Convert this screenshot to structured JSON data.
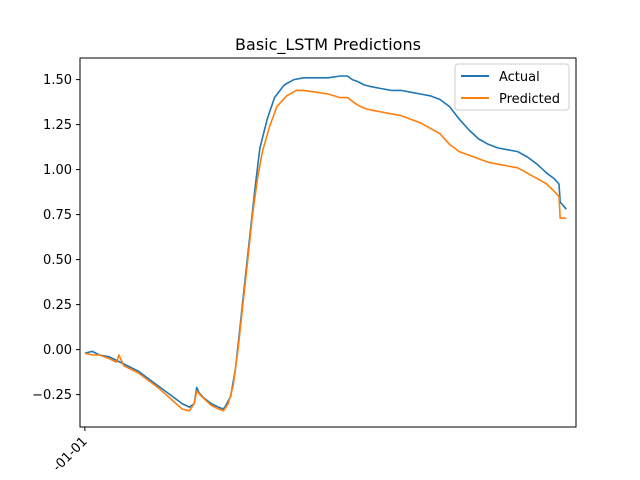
{
  "chart_data": {
    "type": "line",
    "title": "Basic_LSTM Predictions",
    "xlabel": "",
    "ylabel": "",
    "x_tick_labels": [
      "-01-01"
    ],
    "y_ticks": [
      -0.25,
      0.0,
      0.25,
      0.5,
      0.75,
      1.0,
      1.25,
      1.5
    ],
    "y_tick_labels": [
      "−0.25",
      "0.00",
      "0.25",
      "0.50",
      "0.75",
      "1.00",
      "1.25",
      "1.50"
    ],
    "xlim": [
      -2,
      202
    ],
    "ylim": [
      -0.43,
      1.62
    ],
    "grid": false,
    "legend_position": "top-right",
    "series": [
      {
        "name": "Actual",
        "color": "#1f77b4",
        "x": [
          0,
          3,
          6,
          10,
          13,
          16,
          19,
          22,
          25,
          30,
          35,
          40,
          43,
          45,
          46,
          47,
          49,
          52,
          55,
          57,
          58,
          60,
          62,
          64,
          66,
          68,
          70,
          72,
          75,
          78,
          82,
          86,
          90,
          95,
          100,
          105,
          108,
          110,
          112,
          115,
          118,
          122,
          126,
          130,
          134,
          138,
          142,
          146,
          150,
          154,
          158,
          162,
          166,
          170,
          174,
          178,
          182,
          186,
          190,
          193,
          195,
          195.5,
          198
        ],
        "y": [
          -0.02,
          -0.01,
          -0.03,
          -0.04,
          -0.06,
          -0.08,
          -0.1,
          -0.12,
          -0.15,
          -0.2,
          -0.25,
          -0.3,
          -0.32,
          -0.3,
          -0.21,
          -0.24,
          -0.27,
          -0.3,
          -0.32,
          -0.33,
          -0.31,
          -0.26,
          -0.1,
          0.15,
          0.4,
          0.65,
          0.9,
          1.12,
          1.28,
          1.4,
          1.47,
          1.5,
          1.51,
          1.51,
          1.51,
          1.52,
          1.52,
          1.5,
          1.49,
          1.47,
          1.46,
          1.45,
          1.44,
          1.44,
          1.43,
          1.42,
          1.41,
          1.39,
          1.35,
          1.28,
          1.22,
          1.17,
          1.14,
          1.12,
          1.11,
          1.1,
          1.07,
          1.03,
          0.98,
          0.95,
          0.92,
          0.82,
          0.78
        ]
      },
      {
        "name": "Predicted",
        "color": "#ff7f0e",
        "x": [
          0,
          3,
          6,
          10,
          13,
          14,
          16,
          19,
          22,
          25,
          30,
          35,
          40,
          43,
          45,
          46,
          48,
          52,
          55,
          57,
          59,
          61,
          63,
          65,
          67,
          69,
          71,
          73,
          76,
          79,
          83,
          87,
          90,
          95,
          100,
          105,
          108,
          110,
          112,
          115,
          118,
          122,
          126,
          130,
          134,
          138,
          142,
          146,
          150,
          154,
          158,
          162,
          166,
          170,
          174,
          178,
          182,
          186,
          190,
          193,
          195,
          195.5,
          198
        ],
        "y": [
          -0.02,
          -0.03,
          -0.03,
          -0.05,
          -0.07,
          -0.03,
          -0.09,
          -0.11,
          -0.13,
          -0.16,
          -0.21,
          -0.27,
          -0.33,
          -0.34,
          -0.3,
          -0.23,
          -0.26,
          -0.31,
          -0.33,
          -0.34,
          -0.3,
          -0.2,
          0.0,
          0.25,
          0.5,
          0.75,
          0.95,
          1.1,
          1.24,
          1.35,
          1.41,
          1.44,
          1.44,
          1.43,
          1.42,
          1.4,
          1.4,
          1.38,
          1.36,
          1.34,
          1.33,
          1.32,
          1.31,
          1.3,
          1.28,
          1.26,
          1.23,
          1.2,
          1.14,
          1.1,
          1.08,
          1.06,
          1.04,
          1.03,
          1.02,
          1.01,
          0.98,
          0.95,
          0.92,
          0.88,
          0.85,
          0.73,
          0.73
        ]
      }
    ]
  }
}
